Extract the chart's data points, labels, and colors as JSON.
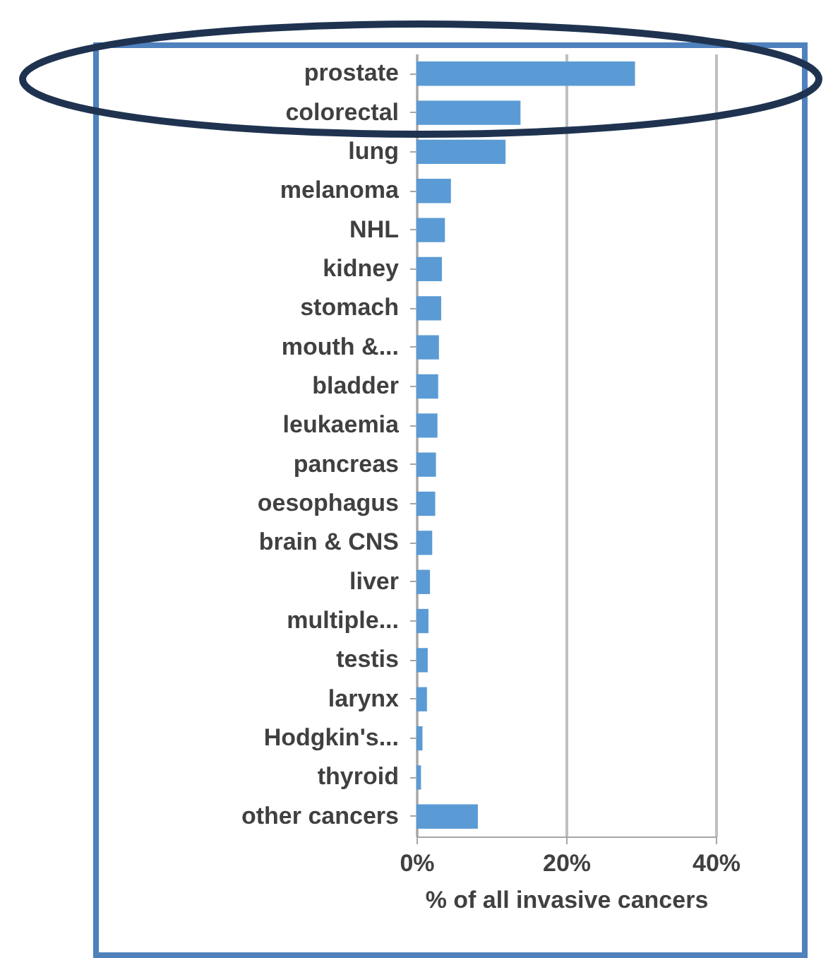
{
  "chart_data": {
    "type": "bar",
    "orientation": "horizontal",
    "xlabel": "% of all invasive cancers",
    "categories": [
      "prostate",
      "colorectal",
      "lung",
      "melanoma",
      "NHL",
      "kidney",
      "stomach",
      "mouth &...",
      "bladder",
      "leukaemia",
      "pancreas",
      "oesophagus",
      "brain & CNS",
      "liver",
      "multiple...",
      "testis",
      "larynx",
      "Hodgkin's...",
      "thyroid",
      "other cancers"
    ],
    "values": [
      29.2,
      13.9,
      11.9,
      4.6,
      3.8,
      3.4,
      3.3,
      3.0,
      2.9,
      2.8,
      2.6,
      2.5,
      2.1,
      1.8,
      1.6,
      1.5,
      1.4,
      0.8,
      0.6,
      8.2
    ],
    "color": "#5b9bd5",
    "xlim": [
      0,
      40
    ],
    "xticks": [
      {
        "value": 0,
        "label": "0%"
      },
      {
        "value": 20,
        "label": "20%"
      },
      {
        "value": 40,
        "label": "40%"
      }
    ],
    "grid": "x"
  }
}
